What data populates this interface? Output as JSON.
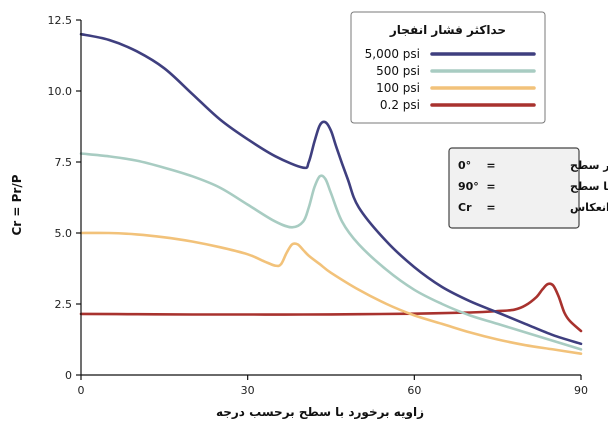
{
  "chart_data": {
    "type": "line",
    "xlabel": "زاویه برخورد با سطح برحسب درجه",
    "ylabel": "Cr = Pr/P",
    "xlim": [
      0,
      90
    ],
    "ylim": [
      0,
      12.5
    ],
    "x_ticks": [
      0,
      30,
      60,
      90
    ],
    "y_ticks": [
      0,
      2.5,
      5.0,
      7.5,
      10.0,
      12.5
    ],
    "y_tick_labels": [
      "0",
      "2.5",
      "5.0",
      "7.5",
      "10.0",
      "12.5"
    ],
    "grid": false,
    "legend": {
      "title": "حداکثر فشار انفجار",
      "placement": "top-right"
    },
    "series": [
      {
        "name": "5,000 psi",
        "color": "#3f3f7f",
        "x": [
          0,
          5,
          10,
          15,
          20,
          25,
          30,
          35,
          40,
          41,
          42,
          43,
          44,
          45,
          46,
          48,
          50,
          55,
          60,
          65,
          70,
          75,
          80,
          85,
          90
        ],
        "y": [
          12.0,
          11.8,
          11.4,
          10.8,
          9.9,
          9.0,
          8.3,
          7.7,
          7.3,
          7.5,
          8.2,
          8.8,
          8.9,
          8.6,
          8.0,
          6.9,
          5.9,
          4.7,
          3.8,
          3.1,
          2.6,
          2.2,
          1.8,
          1.4,
          1.1
        ]
      },
      {
        "name": "500 psi",
        "color": "#a8ccc2",
        "x": [
          0,
          5,
          10,
          15,
          20,
          25,
          30,
          35,
          38,
          40,
          41,
          42,
          43,
          44,
          45,
          47,
          50,
          55,
          60,
          65,
          70,
          75,
          80,
          85,
          90
        ],
        "y": [
          7.8,
          7.7,
          7.55,
          7.3,
          7.0,
          6.6,
          6.0,
          5.4,
          5.2,
          5.4,
          5.9,
          6.6,
          7.0,
          6.9,
          6.4,
          5.4,
          4.6,
          3.7,
          3.0,
          2.5,
          2.1,
          1.8,
          1.5,
          1.2,
          0.9
        ]
      },
      {
        "name": "100 psi",
        "color": "#f2c27a",
        "x": [
          0,
          5,
          10,
          15,
          20,
          25,
          30,
          33,
          35,
          36,
          37,
          38,
          39,
          40,
          41,
          43,
          45,
          50,
          55,
          60,
          65,
          70,
          75,
          80,
          85,
          90
        ],
        "y": [
          5.0,
          5.0,
          4.95,
          4.85,
          4.7,
          4.5,
          4.25,
          4.0,
          3.85,
          3.9,
          4.3,
          4.6,
          4.6,
          4.4,
          4.2,
          3.9,
          3.6,
          3.0,
          2.5,
          2.1,
          1.8,
          1.5,
          1.25,
          1.05,
          0.9,
          0.75
        ]
      },
      {
        "name": "0.2 psi",
        "color": "#a8322e",
        "x": [
          0,
          10,
          20,
          30,
          40,
          50,
          60,
          70,
          75,
          78,
          80,
          82,
          83,
          84,
          85,
          86,
          87,
          88,
          90
        ],
        "y": [
          2.15,
          2.14,
          2.13,
          2.13,
          2.13,
          2.14,
          2.16,
          2.2,
          2.25,
          2.3,
          2.45,
          2.75,
          3.0,
          3.2,
          3.15,
          2.75,
          2.2,
          1.9,
          1.55
        ]
      }
    ]
  },
  "notes": [
    {
      "symbol": "0°",
      "eq": "=",
      "text": "عمود بر سطح"
    },
    {
      "symbol": "90°",
      "eq": "=",
      "text": "موازی با سطح"
    },
    {
      "symbol": "Cr",
      "eq": "=",
      "text": "ضریب انعکاس"
    }
  ]
}
